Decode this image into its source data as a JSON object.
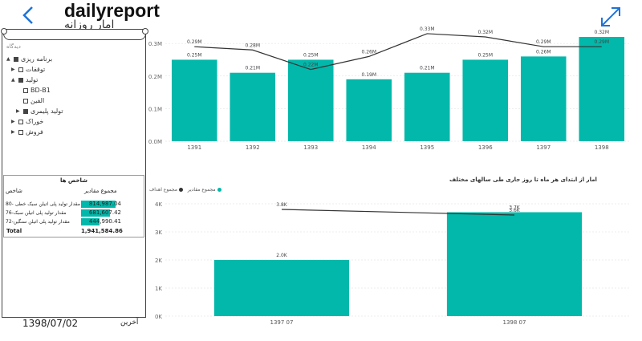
{
  "header": {
    "title": "dailyreport",
    "subtitle": "امار روزانه",
    "back_icon": "chevron-left-icon",
    "expand_icon": "expand-icon"
  },
  "slicer": {
    "heading": "دیدگاه",
    "items": [
      {
        "label": "برنامه ریزی",
        "checked": "partial",
        "level": 0
      },
      {
        "label": "توقفات",
        "checked": "empty",
        "level": 1
      },
      {
        "label": "تولید",
        "checked": "partial",
        "level": 1
      },
      {
        "label": "BD-B1",
        "checked": "empty",
        "level": 2
      },
      {
        "label": "الفین",
        "checked": "empty",
        "level": 2
      },
      {
        "label": "تولید پلیمری",
        "checked": "filled",
        "level": 2
      },
      {
        "label": "خوراک",
        "checked": "empty",
        "level": 1
      },
      {
        "label": "فروش",
        "checked": "empty",
        "level": 1
      }
    ]
  },
  "kpi_table": {
    "title": "شاخص ها",
    "col_name": "شاخص",
    "col_value": "مجموع مقادیر",
    "rows": [
      {
        "name": "مقدار تولید پلی اتیلن سبک خطی -80",
        "value": "814,987.04",
        "fraction": 0.82
      },
      {
        "name": "مقدار تولید پلی اتیلن سبک-76",
        "value": "681,607.42",
        "fraction": 0.69
      },
      {
        "name": "مقدار تولید پلی اتیلن سنگین-72",
        "value": "444,990.41",
        "fraction": 0.45
      }
    ],
    "total_label": "Total",
    "total_value": "1,941,584.86"
  },
  "footer": {
    "date": "1398/07/02",
    "latest": "آخرین"
  },
  "chart_data": [
    {
      "type": "bar",
      "title": "",
      "categories": [
        "1391",
        "1392",
        "1393",
        "1394",
        "1395",
        "1396",
        "1397",
        "1398"
      ],
      "series": [
        {
          "name": "مجموع مقادیر",
          "values": [
            0.25,
            0.21,
            0.25,
            0.19,
            0.21,
            0.25,
            0.26,
            0.32
          ],
          "labels": [
            "0.25M",
            "0.21M",
            "0.25M",
            "0.19M",
            "0.21M",
            "0.25M",
            "0.26M",
            "0.32M"
          ]
        },
        {
          "name": "مجموع اهداف",
          "values": [
            0.29,
            0.28,
            0.22,
            0.26,
            0.33,
            0.32,
            0.29,
            0.29
          ],
          "labels": [
            "0.29M",
            "0.28M",
            "0.22M",
            "0.26M",
            "0.33M",
            "0.32M",
            "0.29M",
            "0.29M"
          ]
        }
      ],
      "yticks": [
        "0.0M",
        "0.1M",
        "0.2M",
        "0.3M"
      ],
      "ylim": [
        0,
        0.32
      ]
    },
    {
      "type": "bar",
      "title": "امار از ابتدای هر ماه تا روز جاری طی سالهای مختلف",
      "categories": [
        "1397 07",
        "1398 07"
      ],
      "series": [
        {
          "name": "مجموع مقادیر",
          "values": [
            2.0,
            3.7
          ],
          "labels": [
            "2.0K",
            "3.7K"
          ]
        },
        {
          "name": "مجموع اهداف",
          "values": [
            3.8,
            3.6
          ],
          "labels": [
            "3.8K",
            "3.6K"
          ]
        }
      ],
      "yticks": [
        "0K",
        "1K",
        "2K",
        "3K",
        "4K"
      ],
      "ylim": [
        0,
        4
      ]
    }
  ],
  "colors": {
    "bar": "#01b8aa",
    "line": "#333333",
    "grid": "#dddddd"
  }
}
